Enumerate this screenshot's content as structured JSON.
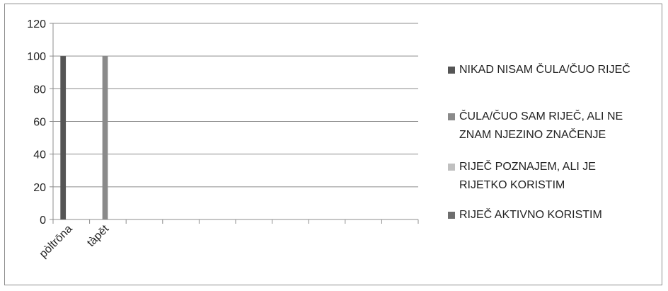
{
  "chart_data": {
    "type": "bar",
    "categories": [
      "pòltrōna",
      "tàpēt",
      "",
      "",
      "",
      "",
      "",
      "",
      "",
      ""
    ],
    "series": [
      {
        "name": "NIKAD NISAM ČULA/ČUO RIJEČ",
        "color": "#555555",
        "values": [
          100,
          0,
          0,
          0,
          0,
          0,
          0,
          0,
          0,
          0
        ]
      },
      {
        "name": "ČULA/ČUO SAM RIJEČ,  ALI NE ZNAM NJEZINO ZNAČENJE",
        "color": "#8a8a8a",
        "values": [
          0,
          100,
          0,
          0,
          0,
          0,
          0,
          0,
          0,
          0
        ]
      },
      {
        "name": "RIJEČ POZNAJEM, ALI JE RIJETKO KORISTIM",
        "color": "#c0c0c0",
        "values": [
          0,
          0,
          0,
          0,
          0,
          0,
          0,
          0,
          0,
          0
        ]
      },
      {
        "name": "RIJEČ AKTIVNO KORISTIM",
        "color": "#6e6e6e",
        "values": [
          0,
          0,
          0,
          0,
          0,
          0,
          0,
          0,
          0,
          0
        ]
      }
    ],
    "yticks": [
      "0",
      "20",
      "40",
      "60",
      "80",
      "100",
      "120"
    ],
    "ylim": [
      0,
      120
    ],
    "grid": true,
    "legend_position": "right",
    "xlabel": "",
    "ylabel": "",
    "title": ""
  }
}
